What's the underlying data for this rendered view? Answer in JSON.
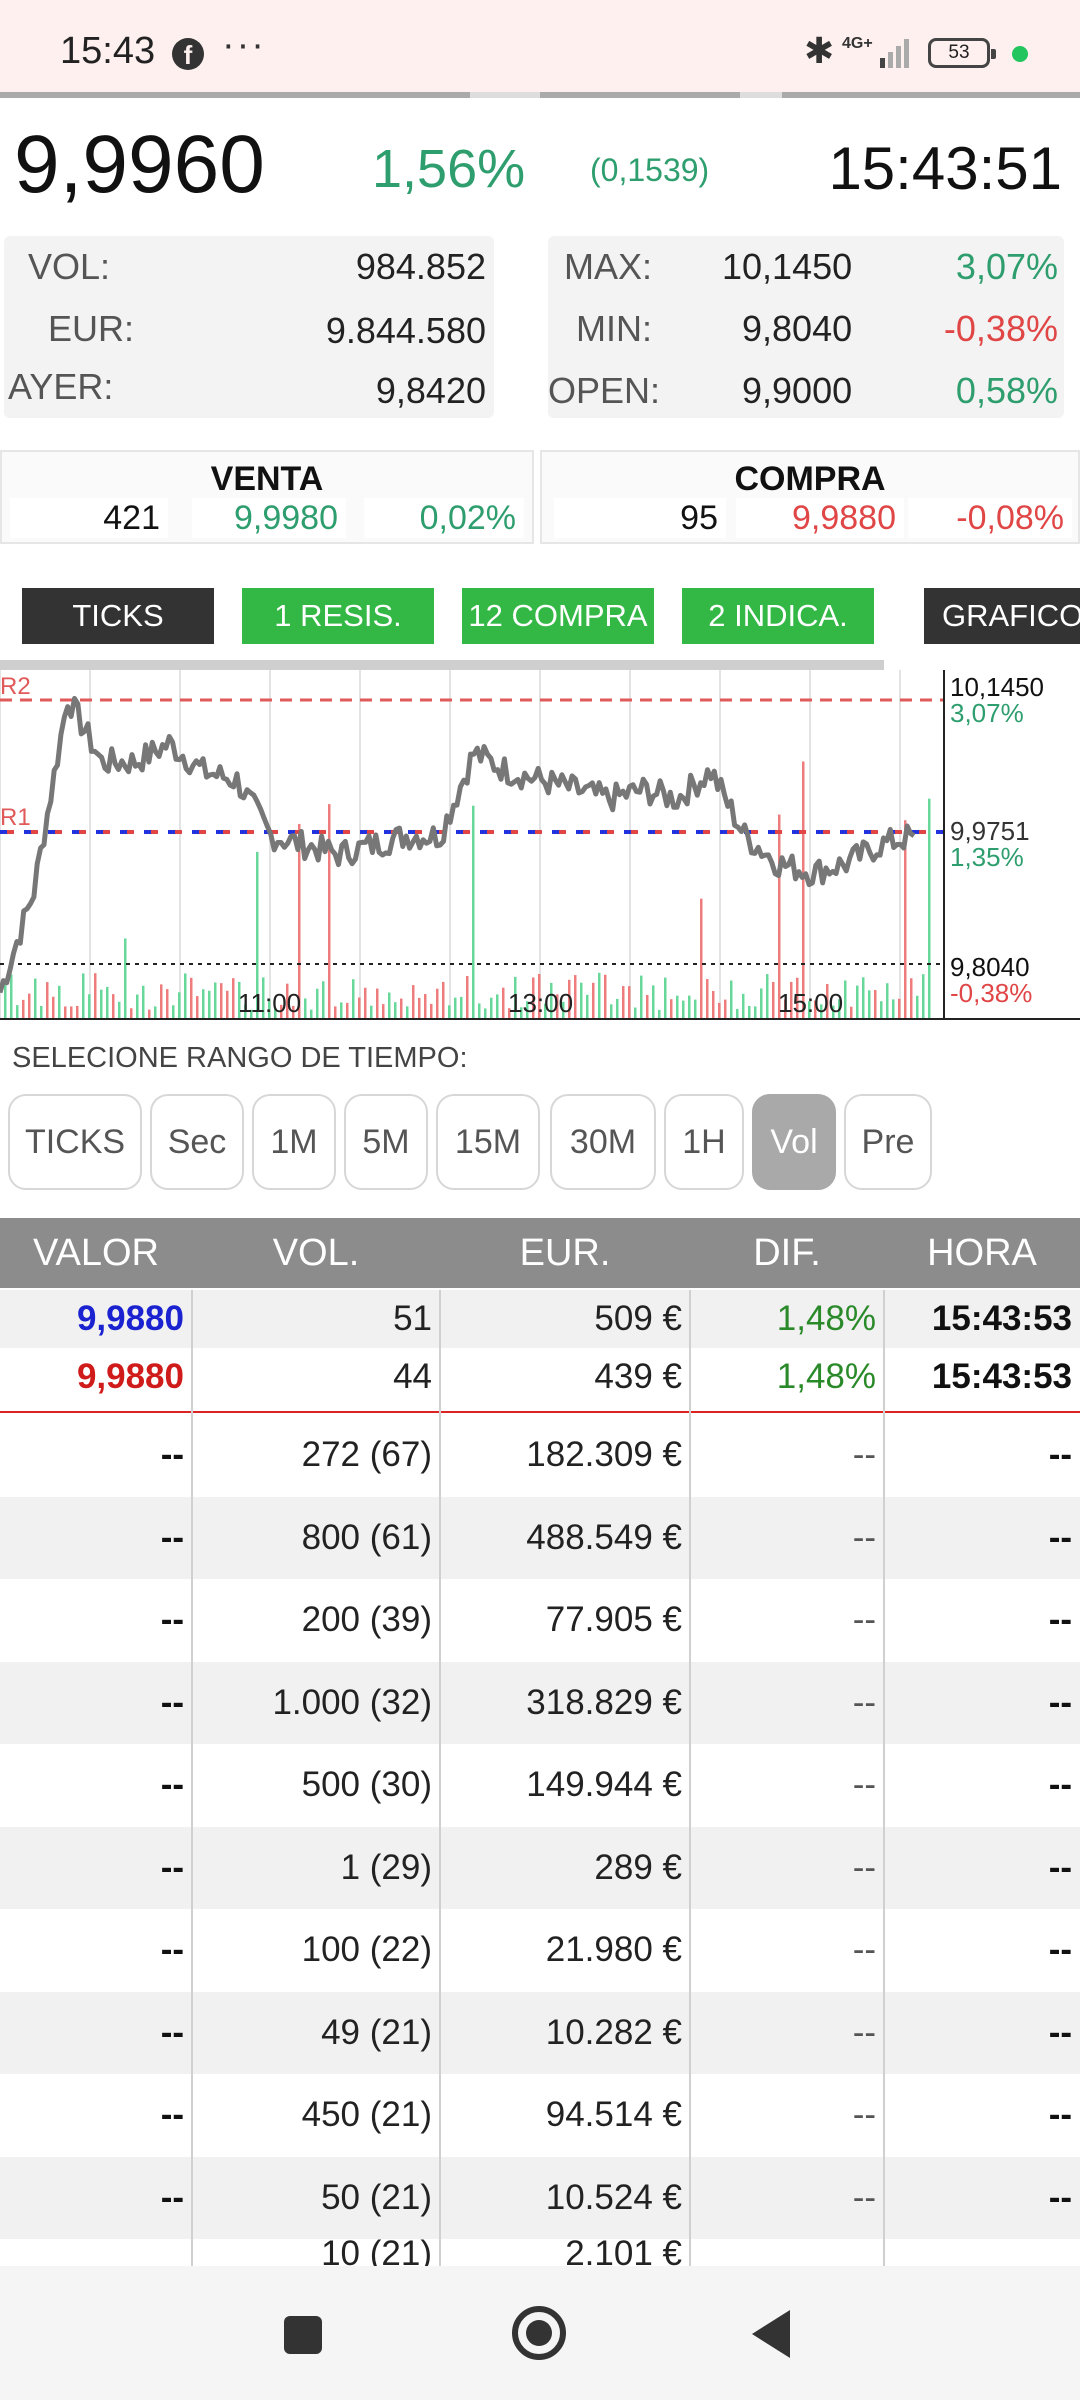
{
  "status_bar": {
    "time": "15:43",
    "fb_glyph": "f",
    "dots": "···",
    "network": "4G+",
    "battery": "53"
  },
  "quote": {
    "price": "9,9960",
    "change_pct": "1,56%",
    "change_abs": "(0,1539)",
    "time": "15:43:51"
  },
  "stats_left": [
    {
      "label": "VOL:",
      "value": "984.852"
    },
    {
      "label": "EUR:",
      "value": "9.844.580"
    },
    {
      "label": "AYER:",
      "value": "9,8420"
    }
  ],
  "stats_right": [
    {
      "label": "MAX:",
      "value": "10,1450",
      "pct": "3,07%"
    },
    {
      "label": "MIN:",
      "value": "9,8040",
      "pct": "-0,38%"
    },
    {
      "label": "OPEN:",
      "value": "9,9000",
      "pct": "0,58%"
    }
  ],
  "sell": {
    "title": "VENTA",
    "qty": "421",
    "price": "9,9980",
    "pct": "0,02%"
  },
  "buy": {
    "title": "COMPRA",
    "qty": "95",
    "price": "9,9880",
    "pct": "-0,08%"
  },
  "tabs": [
    "TICKS",
    "1 RESIS.",
    "12 COMPRA",
    "2 INDICA.",
    "GRAFICO I"
  ],
  "chart": {
    "r2": "R2",
    "r1": "R1",
    "max_value": "10,1450",
    "max_pct": "3,07%",
    "mid_value": "9,9751",
    "mid_pct": "1,35%",
    "min_value": "9,8040",
    "min_pct": "-0,38%",
    "x_labels": [
      "11:00",
      "13:00",
      "15:00"
    ]
  },
  "chart_data": {
    "type": "line",
    "x": [
      "09:00",
      "09:15",
      "09:30",
      "09:45",
      "10:00",
      "10:15",
      "10:30",
      "10:45",
      "11:00",
      "11:15",
      "11:30",
      "11:45",
      "12:00",
      "12:15",
      "12:30",
      "12:45",
      "13:00",
      "13:15",
      "13:30",
      "13:45",
      "14:00",
      "14:15",
      "14:30",
      "14:45",
      "15:00",
      "15:15",
      "15:30",
      "15:43"
    ],
    "values": [
      9.81,
      9.92,
      10.13,
      10.06,
      10.06,
      10.08,
      10.05,
      10.04,
      9.98,
      9.97,
      9.96,
      9.97,
      9.98,
      9.98,
      10.07,
      10.05,
      10.04,
      10.03,
      10.02,
      10.03,
      10.02,
      10.05,
      9.98,
      9.95,
      9.94,
      9.95,
      9.97,
      9.98
    ],
    "ylim": [
      9.78,
      10.16
    ],
    "reference_lines": {
      "R2": 10.145,
      "R1": 9.9751,
      "min": 9.804
    },
    "title": "",
    "xlabel": "",
    "ylabel": "",
    "colors": {
      "line": "#777777",
      "r2": "#e05a5a",
      "r1_blue": "#2233dd",
      "r1_red": "#e04646"
    }
  },
  "range": {
    "label": "SELECIONE RANGO DE TIEMPO:",
    "buttons": [
      "TICKS",
      "Sec",
      "1M",
      "5M",
      "15M",
      "30M",
      "1H",
      "Vol",
      "Pre"
    ],
    "active": "Vol"
  },
  "table": {
    "headers": [
      "VALOR",
      "VOL.",
      "EUR.",
      "DIF.",
      "HORA"
    ],
    "top_rows": [
      [
        "9,9880",
        "51",
        "509 €",
        "1,48%",
        "15:43:53"
      ],
      [
        "9,9880",
        "44",
        "439 €",
        "1,48%",
        "15:43:53"
      ]
    ],
    "rows": [
      [
        "--",
        "272 (67)",
        "182.309 €",
        "--",
        "--"
      ],
      [
        "--",
        "800 (61)",
        "488.549 €",
        "--",
        "--"
      ],
      [
        "--",
        "200 (39)",
        "77.905 €",
        "--",
        "--"
      ],
      [
        "--",
        "1.000 (32)",
        "318.829 €",
        "--",
        "--"
      ],
      [
        "--",
        "500 (30)",
        "149.944 €",
        "--",
        "--"
      ],
      [
        "--",
        "1 (29)",
        "289 €",
        "--",
        "--"
      ],
      [
        "--",
        "100 (22)",
        "21.980 €",
        "--",
        "--"
      ],
      [
        "--",
        "49 (21)",
        "10.282 €",
        "--",
        "--"
      ],
      [
        "--",
        "450 (21)",
        "94.514 €",
        "--",
        "--"
      ],
      [
        "--",
        "50 (21)",
        "10.524 €",
        "--",
        "--"
      ]
    ],
    "cut_row": [
      "",
      "10 (21)",
      "2.101 €",
      "",
      ""
    ]
  }
}
